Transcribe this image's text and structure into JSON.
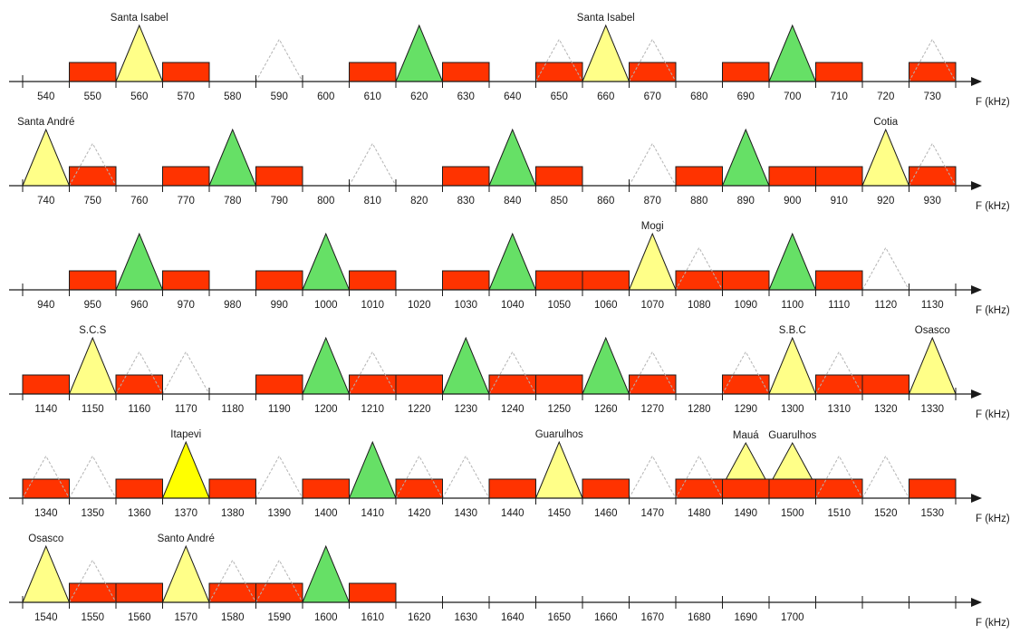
{
  "diagram": {
    "unit_label": "F (kHz)",
    "colors": {
      "block": "#ff3300",
      "green": "#66e066",
      "yellow": "#ffff88",
      "bright_yellow": "#ffff00",
      "outline": "#1a1a1a",
      "ghost": "#b4b4b4"
    },
    "rows": [
      {
        "ticks": [
          "540",
          "550",
          "560",
          "570",
          "580",
          "590",
          "600",
          "610",
          "620",
          "630",
          "640",
          "650",
          "660",
          "670",
          "680",
          "690",
          "700",
          "710",
          "720",
          "730"
        ],
        "blocks": [
          1,
          3,
          7,
          9,
          11,
          13,
          15,
          17,
          19
        ],
        "triangles": [
          {
            "slot": 2,
            "kind": "yellow"
          },
          {
            "slot": 5,
            "kind": "ghost"
          },
          {
            "slot": 8,
            "kind": "green"
          },
          {
            "slot": 11,
            "kind": "ghost"
          },
          {
            "slot": 12,
            "kind": "yellow"
          },
          {
            "slot": 13,
            "kind": "ghost"
          },
          {
            "slot": 16,
            "kind": "green"
          },
          {
            "slot": 19,
            "kind": "ghost"
          }
        ],
        "labels": [
          {
            "slot": 2,
            "text": "Santa Isabel"
          },
          {
            "slot": 12,
            "text": "Santa Isabel"
          }
        ]
      },
      {
        "ticks": [
          "740",
          "750",
          "760",
          "770",
          "780",
          "790",
          "800",
          "810",
          "820",
          "830",
          "840",
          "850",
          "860",
          "870",
          "880",
          "890",
          "900",
          "910",
          "920",
          "930"
        ],
        "blocks": [
          1,
          3,
          5,
          9,
          11,
          14,
          16,
          17,
          19
        ],
        "triangles": [
          {
            "slot": 0,
            "kind": "yellow"
          },
          {
            "slot": 1,
            "kind": "ghost"
          },
          {
            "slot": 4,
            "kind": "green"
          },
          {
            "slot": 7,
            "kind": "ghost"
          },
          {
            "slot": 10,
            "kind": "green"
          },
          {
            "slot": 13,
            "kind": "ghost"
          },
          {
            "slot": 15,
            "kind": "green"
          },
          {
            "slot": 18,
            "kind": "yellow"
          },
          {
            "slot": 19,
            "kind": "ghost"
          }
        ],
        "labels": [
          {
            "slot": 0,
            "text": "Santa André"
          },
          {
            "slot": 18,
            "text": "Cotia"
          }
        ]
      },
      {
        "ticks": [
          "940",
          "950",
          "960",
          "970",
          "980",
          "990",
          "1000",
          "1010",
          "1020",
          "1030",
          "1040",
          "1050",
          "1060",
          "1070",
          "1080",
          "1090",
          "1100",
          "1110",
          "1120",
          "1130"
        ],
        "blocks": [
          1,
          3,
          5,
          7,
          9,
          11,
          12,
          14,
          15,
          17
        ],
        "triangles": [
          {
            "slot": 2,
            "kind": "green"
          },
          {
            "slot": 6,
            "kind": "green"
          },
          {
            "slot": 10,
            "kind": "green"
          },
          {
            "slot": 13,
            "kind": "yellow"
          },
          {
            "slot": 14,
            "kind": "ghost"
          },
          {
            "slot": 16,
            "kind": "green"
          },
          {
            "slot": 18,
            "kind": "ghost"
          }
        ],
        "labels": [
          {
            "slot": 13,
            "text": "Mogi"
          }
        ]
      },
      {
        "ticks": [
          "1140",
          "1150",
          "1160",
          "1170",
          "1180",
          "1190",
          "1200",
          "1210",
          "1220",
          "1230",
          "1240",
          "1250",
          "1260",
          "1270",
          "1280",
          "1290",
          "1300",
          "1310",
          "1320",
          "1330"
        ],
        "blocks": [
          0,
          2,
          5,
          7,
          8,
          10,
          11,
          13,
          15,
          17,
          18
        ],
        "triangles": [
          {
            "slot": 1,
            "kind": "yellow"
          },
          {
            "slot": 2,
            "kind": "ghost"
          },
          {
            "slot": 3,
            "kind": "ghost"
          },
          {
            "slot": 6,
            "kind": "green"
          },
          {
            "slot": 7,
            "kind": "ghost"
          },
          {
            "slot": 9,
            "kind": "green"
          },
          {
            "slot": 10,
            "kind": "ghost"
          },
          {
            "slot": 12,
            "kind": "green"
          },
          {
            "slot": 13,
            "kind": "ghost"
          },
          {
            "slot": 15,
            "kind": "ghost"
          },
          {
            "slot": 16,
            "kind": "yellow"
          },
          {
            "slot": 17,
            "kind": "ghost"
          },
          {
            "slot": 19,
            "kind": "yellow"
          }
        ],
        "labels": [
          {
            "slot": 1,
            "text": "S.C.S"
          },
          {
            "slot": 16,
            "text": "S.B.C"
          },
          {
            "slot": 19,
            "text": "Osasco"
          }
        ]
      },
      {
        "ticks": [
          "1340",
          "1350",
          "1360",
          "1370",
          "1380",
          "1390",
          "1400",
          "1410",
          "1420",
          "1430",
          "1440",
          "1450",
          "1460",
          "1470",
          "1480",
          "1490",
          "1500",
          "1510",
          "1520",
          "1530"
        ],
        "blocks": [
          0,
          2,
          4,
          6,
          8,
          10,
          12,
          14,
          15,
          16,
          17,
          19
        ],
        "triangles": [
          {
            "slot": 0,
            "kind": "ghost"
          },
          {
            "slot": 1,
            "kind": "ghost"
          },
          {
            "slot": 3,
            "kind": "bright_yellow"
          },
          {
            "slot": 5,
            "kind": "ghost"
          },
          {
            "slot": 7,
            "kind": "green"
          },
          {
            "slot": 8,
            "kind": "ghost"
          },
          {
            "slot": 9,
            "kind": "ghost"
          },
          {
            "slot": 11,
            "kind": "yellow"
          },
          {
            "slot": 13,
            "kind": "ghost"
          },
          {
            "slot": 14,
            "kind": "ghost"
          },
          {
            "slot": 15,
            "kind": "yellow_small"
          },
          {
            "slot": 16,
            "kind": "yellow_small"
          },
          {
            "slot": 17,
            "kind": "ghost"
          },
          {
            "slot": 18,
            "kind": "ghost"
          }
        ],
        "labels": [
          {
            "slot": 3,
            "text": "Itapevi"
          },
          {
            "slot": 11,
            "text": "Guarulhos"
          },
          {
            "slot": 15,
            "text": "Mauá"
          },
          {
            "slot": 16,
            "text": "Guarulhos"
          }
        ]
      },
      {
        "ticks": [
          "1540",
          "1550",
          "1560",
          "1570",
          "1580",
          "1590",
          "1600",
          "1610",
          "1620",
          "1630",
          "1640",
          "1650",
          "1660",
          "1670",
          "1680",
          "1690",
          "1700",
          "",
          "",
          ""
        ],
        "blocks": [
          1,
          2,
          4,
          5,
          7
        ],
        "triangles": [
          {
            "slot": 0,
            "kind": "yellow"
          },
          {
            "slot": 1,
            "kind": "ghost"
          },
          {
            "slot": 3,
            "kind": "yellow"
          },
          {
            "slot": 4,
            "kind": "ghost"
          },
          {
            "slot": 5,
            "kind": "ghost"
          },
          {
            "slot": 6,
            "kind": "green"
          }
        ],
        "labels": [
          {
            "slot": 0,
            "text": "Osasco"
          },
          {
            "slot": 3,
            "text": "Santo André"
          }
        ]
      }
    ]
  }
}
